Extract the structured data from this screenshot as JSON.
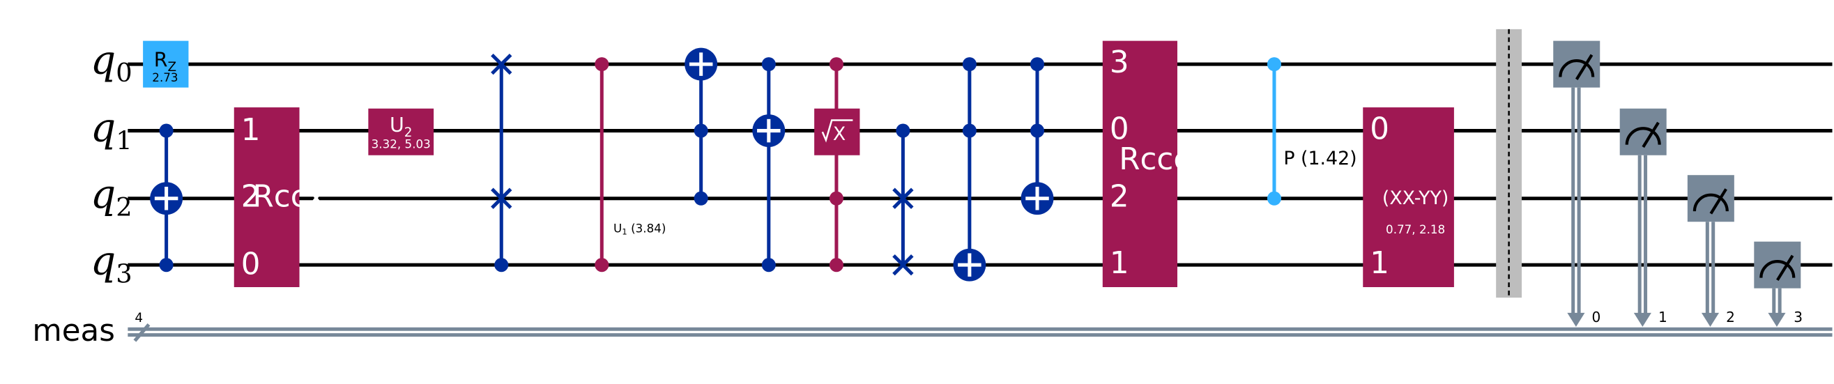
{
  "wires": {
    "q0": {
      "base": "q",
      "sub": "0"
    },
    "q1": {
      "base": "q",
      "sub": "1"
    },
    "q2": {
      "base": "q",
      "sub": "2"
    },
    "q3": {
      "base": "q",
      "sub": "3"
    },
    "meas": "meas",
    "meas_width": "4"
  },
  "gates": {
    "rz": {
      "base": "R",
      "sub": "Z",
      "param": "2.73"
    },
    "rccx": {
      "label": "Rccx",
      "pin_q1": "1",
      "pin_q2": "2",
      "pin_q3": "0"
    },
    "u2": {
      "base": "U",
      "sub": "2",
      "param": "3.32, 5.03"
    },
    "u1": {
      "base": "U",
      "sub": "1",
      "param": "(3.84)"
    },
    "sx": {
      "label": "X"
    },
    "rcccx": {
      "label": "Rcccx",
      "pin_q0": "3",
      "pin_q1": "0",
      "pin_q2": "2",
      "pin_q3": "1"
    },
    "p": {
      "label": "P (1.42)"
    },
    "xxyy": {
      "label": "(XX-YY)",
      "param": "0.77, 2.18",
      "pin_q1": "0",
      "pin_q3": "1"
    }
  },
  "measure_bits": [
    "0",
    "1",
    "2",
    "3"
  ],
  "colors": {
    "cx": "#002d9c",
    "multi": "#9f1853",
    "rz": "#33b1ff",
    "barrier": "#bdbdbd",
    "measure": "#778899"
  }
}
